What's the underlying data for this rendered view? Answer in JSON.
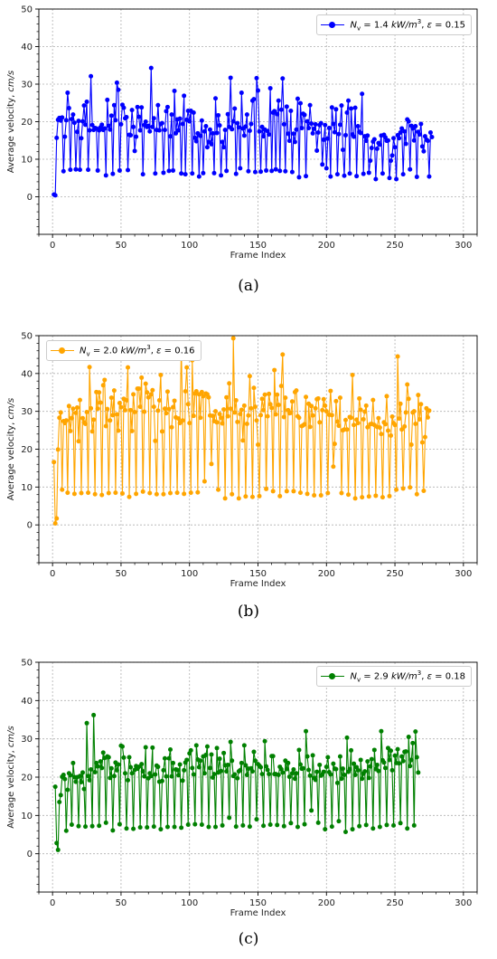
{
  "chart_data": [
    {
      "type": "line",
      "caption": "(a)",
      "color": "#0000ff",
      "legend": {
        "text": "N_v = 1.4 kW/m^3, ε = 0.15",
        "placement": "upper right"
      },
      "legend_parts": {
        "sym": "N",
        "sub": "v",
        "eq": " = 1.4 ",
        "unit": "kW/m",
        "sup": "3",
        "tail": ", ",
        "eps": "ε",
        "eps_val": " = 0.15"
      },
      "xlabel": "Frame Index",
      "ylabel": "Average velocity, cm/s",
      "xlim": [
        -10,
        310
      ],
      "ylim": [
        -10,
        50
      ],
      "xticks": [
        0,
        50,
        100,
        150,
        200,
        250,
        300
      ],
      "yticks": [
        0,
        10,
        20,
        30,
        40,
        50
      ],
      "grid": true,
      "x_start": 1,
      "values": [
        0.6,
        0.4,
        15.7,
        20.5,
        21.0,
        20.3,
        21.1,
        6.8,
        16.0,
        20.4,
        27.7,
        23.6,
        7.2,
        20.7,
        21.9,
        19.7,
        7.3,
        17.3,
        20.2,
        7.2,
        15.6,
        20.1,
        24.3,
        19.2,
        25.3,
        7.2,
        17.7,
        32.1,
        19.1,
        17.8,
        18.3,
        18.2,
        7.0,
        17.7,
        18.5,
        19.2,
        17.8,
        18.2,
        5.7,
        25.8,
        18.9,
        17.9,
        21.6,
        6.1,
        24.4,
        20.4,
        30.4,
        28.5,
        7.0,
        19.3,
        24.5,
        23.7,
        20.9,
        21.2,
        7.1,
        16.5,
        16.4,
        23.1,
        18.6,
        12.2,
        16.0,
        23.9,
        21.3,
        17.7,
        23.8,
        6.0,
        19.1,
        20.0,
        18.6,
        18.9,
        17.4,
        34.3,
        18.6,
        20.9,
        6.2,
        17.8,
        24.4,
        17.7,
        19.4,
        19.6,
        6.4,
        17.8,
        22.8,
        23.9,
        6.9,
        16.1,
        21.9,
        7.0,
        28.2,
        16.9,
        20.6,
        17.7,
        20.8,
        6.2,
        19.4,
        26.9,
        6.0,
        20.5,
        22.9,
        20.1,
        22.9,
        6.2,
        22.4,
        15.7,
        14.8,
        16.9,
        5.4,
        16.2,
        20.3,
        6.3,
        17.4,
        18.8,
        13.2,
        14.6,
        17.9,
        14.0,
        16.9,
        6.3,
        26.2,
        17.0,
        21.7,
        19.0,
        5.7,
        14.6,
        13.2,
        17.8,
        6.9,
        22.0,
        18.6,
        31.7,
        18.0,
        20.1,
        23.5,
        6.1,
        19.6,
        18.5,
        7.6,
        27.7,
        18.2,
        16.3,
        18.7,
        21.9,
        6.8,
        17.6,
        19.4,
        25.6,
        26.0,
        6.6,
        31.6,
        28.3,
        17.4,
        6.7,
        18.6,
        16.1,
        17.9,
        7.0,
        17.5,
        16.6,
        28.9,
        6.9,
        22.4,
        22.8,
        7.3,
        22.0,
        25.6,
        6.9,
        23.2,
        31.5,
        19.3,
        6.8,
        24.0,
        16.8,
        14.9,
        22.9,
        6.6,
        16.8,
        14.6,
        17.9,
        26.1,
        5.2,
        24.9,
        18.3,
        22.1,
        21.8,
        5.5,
        20.1,
        18.3,
        24.4,
        19.5,
        16.9,
        18.1,
        19.3,
        12.3,
        17.1,
        19.1,
        19.6,
        8.6,
        15.2,
        19.1,
        7.6,
        15.5,
        18.3,
        5.4,
        23.8,
        19.4,
        17.2,
        23.3,
        6.0,
        16.7,
        19.2,
        24.3,
        12.5,
        5.6,
        16.4,
        22.4,
        25.6,
        6.2,
        23.5,
        16.6,
        16.0,
        23.7,
        5.5,
        18.8,
        17.3,
        17.0,
        27.4,
        6.1,
        16.1,
        14.9,
        16.3,
        6.4,
        9.6,
        13.0,
        14.7,
        15.3,
        4.7,
        12.8,
        14.3,
        13.9,
        16.3,
        6.2,
        16.5,
        15.8,
        14.9,
        15.0,
        5.0,
        9.6,
        11.0,
        15.6,
        13.2,
        4.7,
        16.4,
        15.6,
        17.1,
        18.2,
        6.0,
        17.4,
        14.1,
        20.6,
        20.1,
        7.3,
        18.9,
        18.2,
        15.0,
        18.8,
        5.3,
        17.3,
        16.6,
        19.4,
        13.4,
        12.1,
        16.1,
        15.2,
        14.9,
        5.4,
        17.1,
        15.9
      ]
    },
    {
      "type": "line",
      "caption": "(b)",
      "color": "#ffa500",
      "legend": {
        "text": "N_v = 2.0 kW/m^3, ε = 0.16",
        "placement": "upper left"
      },
      "legend_parts": {
        "sym": "N",
        "sub": "v",
        "eq": " = 2.0 ",
        "unit": "kW/m",
        "sup": "3",
        "tail": ", ",
        "eps": "ε",
        "eps_val": " = 0.16"
      },
      "xlabel": "Frame Index",
      "ylabel": "Average velocity, cm/s",
      "xlim": [
        -10,
        310
      ],
      "ylim": [
        -10,
        50
      ],
      "xticks": [
        0,
        50,
        100,
        150,
        200,
        250,
        300
      ],
      "yticks": [
        0,
        10,
        20,
        30,
        40,
        50
      ],
      "grid": true,
      "x_start": 1,
      "values": [
        16.6,
        0.4,
        1.7,
        19.9,
        28.3,
        29.7,
        9.3,
        27.4,
        26.9,
        27.6,
        8.5,
        31.4,
        24.8,
        28.2,
        30.7,
        8.2,
        29.6,
        31.0,
        22.1,
        33.0,
        8.4,
        28.2,
        27.1,
        26.7,
        29.8,
        8.5,
        41.7,
        30.8,
        24.7,
        27.8,
        8.1,
        35.1,
        30.7,
        35.0,
        32.3,
        7.9,
        36.9,
        38.3,
        26.1,
        30.6,
        8.4,
        27.6,
        33.6,
        29.0,
        35.5,
        8.5,
        29.2,
        24.9,
        32.2,
        31.1,
        8.3,
        33.3,
        30.3,
        32.9,
        41.6,
        7.4,
        30.3,
        24.8,
        34.5,
        29.8,
        8.2,
        36.0,
        36.0,
        31.2,
        38.9,
        8.8,
        29.9,
        37.3,
        35.0,
        33.7,
        8.4,
        34.5,
        35.6,
        31.2,
        22.2,
        8.1,
        30.2,
        32.9,
        39.6,
        24.7,
        8.1,
        30.7,
        29.5,
        35.2,
        30.6,
        8.4,
        25.8,
        31.1,
        32.8,
        28.4,
        8.5,
        28.1,
        26.9,
        46.6,
        27.6,
        8.2,
        35.3,
        41.6,
        31.9,
        26.9,
        8.5,
        43.5,
        28.8,
        34.7,
        35.3,
        8.6,
        34.5,
        28.3,
        35.1,
        34.0,
        11.5,
        34.7,
        34.5,
        33.7,
        28.9,
        16.1,
        28.8,
        27.4,
        30.0,
        27.1,
        9.3,
        29.3,
        28.3,
        26.8,
        30.5,
        7.0,
        33.7,
        28.7,
        37.4,
        30.7,
        8.1,
        49.3,
        29.7,
        32.9,
        27.2,
        7.0,
        29.3,
        30.4,
        22.3,
        31.5,
        7.5,
        26.7,
        28.9,
        39.3,
        30.8,
        7.4,
        36.2,
        31.2,
        27.6,
        21.2,
        7.6,
        29.0,
        33.3,
        30.3,
        34.4,
        9.5,
        28.7,
        34.6,
        31.9,
        30.9,
        8.9,
        40.9,
        29.2,
        34.4,
        31.7,
        7.6,
        36.7,
        45.0,
        28.5,
        33.6,
        8.9,
        30.3,
        29.5,
        29.6,
        32.6,
        8.9,
        35.1,
        35.5,
        28.7,
        28.3,
        8.5,
        26.1,
        26.3,
        26.6,
        33.8,
        8.2,
        32.0,
        25.9,
        31.4,
        28.9,
        7.8,
        30.8,
        33.2,
        33.4,
        27.1,
        7.8,
        30.3,
        33.2,
        31.5,
        30.0,
        8.4,
        29.1,
        35.4,
        29.0,
        15.4,
        21.4,
        32.7,
        27.3,
        26.2,
        33.6,
        8.4,
        25.0,
        25.2,
        27.7,
        25.2,
        8.0,
        28.5,
        28.3,
        39.6,
        26.4,
        7.0,
        27.8,
        26.9,
        33.4,
        30.4,
        7.3,
        27.9,
        29.9,
        31.5,
        25.8,
        7.5,
        26.6,
        26.7,
        33.0,
        26.4,
        7.7,
        25.9,
        28.2,
        25.7,
        24.0,
        7.3,
        27.1,
        26.6,
        34.0,
        24.9,
        7.6,
        23.6,
        28.6,
        26.9,
        26.4,
        9.3,
        44.5,
        28.1,
        32.0,
        25.2,
        9.6,
        26.0,
        29.7,
        37.1,
        33.3,
        9.9,
        21.2,
        29.7,
        30.0,
        26.7,
        8.1,
        34.3,
        27.9,
        31.9,
        21.8,
        9.0,
        23.2,
        30.8,
        28.4,
        30.2
      ]
    },
    {
      "type": "line",
      "caption": "(c)",
      "color": "#008000",
      "legend": {
        "text": "N_v = 2.9 kW/m^3, ε = 0.18",
        "placement": "upper right"
      },
      "legend_parts": {
        "sym": "N",
        "sub": "v",
        "eq": " = 2.9 ",
        "unit": "kW/m",
        "sup": "3",
        "tail": ", ",
        "eps": "ε",
        "eps_val": " = 0.18"
      },
      "xlabel": "Frame Index",
      "ylabel": "Average velocity, cm/s",
      "xlim": [
        -10,
        310
      ],
      "ylim": [
        -10,
        50
      ],
      "xticks": [
        0,
        50,
        100,
        150,
        200,
        250,
        300
      ],
      "yticks": [
        0,
        10,
        20,
        30,
        40,
        50
      ],
      "grid": true,
      "x_start": 2,
      "values": [
        17.5,
        2.8,
        1.0,
        13.5,
        15.3,
        20.1,
        20.6,
        19.5,
        6.0,
        16.7,
        21.0,
        20.5,
        7.6,
        23.7,
        20.0,
        18.8,
        20.0,
        7.2,
        20.3,
        18.7,
        21.2,
        16.9,
        7.1,
        34.1,
        20.3,
        19.2,
        22.0,
        7.2,
        36.2,
        21.3,
        23.7,
        22.8,
        7.3,
        24.1,
        22.4,
        26.4,
        25.0,
        8.1,
        25.4,
        25.2,
        19.8,
        22.3,
        6.1,
        20.3,
        23.8,
        21.8,
        23.3,
        7.7,
        28.2,
        28.0,
        25.1,
        21.0,
        6.6,
        19.2,
        25.2,
        22.6,
        21.0,
        6.5,
        21.9,
        22.9,
        22.2,
        22.7,
        6.9,
        23.4,
        21.5,
        20.2,
        27.8,
        6.9,
        19.7,
        21.0,
        20.3,
        27.7,
        7.1,
        20.7,
        23.0,
        22.7,
        18.8,
        6.4,
        19.0,
        21.8,
        24.9,
        20.2,
        7.0,
        24.9,
        27.2,
        20.2,
        23.7,
        7.0,
        22.0,
        21.9,
        20.5,
        23.3,
        6.8,
        19.1,
        21.8,
        23.8,
        24.5,
        7.6,
        26.2,
        27.0,
        22.4,
        20.7,
        7.7,
        28.3,
        24.6,
        22.6,
        24.3,
        7.6,
        25.4,
        21.0,
        25.8,
        28.0,
        7.0,
        22.4,
        25.9,
        19.9,
        20.8,
        7.0,
        27.6,
        21.2,
        24.8,
        21.6,
        7.4,
        26.3,
        23.1,
        21.5,
        23.2,
        9.4,
        29.2,
        24.3,
        20.3,
        20.7,
        7.1,
        19.7,
        21.5,
        21.8,
        23.7,
        7.4,
        28.3,
        23.1,
        20.6,
        22.2,
        7.1,
        22.3,
        21.5,
        26.6,
        24.3,
        9.0,
        23.4,
        23.0,
        22.6,
        20.8,
        7.3,
        29.4,
        22.8,
        21.9,
        20.8,
        7.6,
        25.5,
        25.5,
        20.8,
        20.8,
        7.5,
        20.6,
        22.7,
        22.1,
        21.2,
        7.2,
        24.3,
        22.1,
        23.7,
        20.1,
        8.0,
        21.0,
        22.0,
        19.6,
        21.0,
        7.0,
        27.1,
        23.3,
        22.2,
        22.3,
        7.7,
        32.0,
        25.4,
        21.9,
        20.4,
        11.3,
        25.7,
        19.8,
        19.3,
        21.4,
        8.1,
        23.2,
        20.4,
        20.7,
        21.4,
        6.4,
        22.7,
        25.2,
        21.3,
        20.7,
        7.1,
        23.5,
        22.2,
        22.1,
        18.5,
        8.5,
        25.4,
        19.6,
        22.2,
        20.6,
        5.7,
        30.3,
        21.4,
        22.1,
        27.0,
        6.4,
        23.5,
        20.6,
        22.6,
        21.8,
        7.2,
        24.5,
        19.6,
        20.9,
        21.5,
        7.5,
        24.1,
        19.8,
        22.8,
        24.7,
        6.6,
        27.1,
        22.1,
        23.2,
        21.6,
        7.0,
        32.0,
        24.4,
        23.8,
        22.4,
        7.5,
        27.6,
        24.5,
        26.9,
        21.8,
        7.4,
        25.6,
        23.7,
        27.3,
        23.6,
        8.0,
        25.4,
        24.2,
        26.6,
        26.7,
        6.6,
        30.5,
        22.9,
        24.5,
        28.9,
        7.4,
        31.9,
        25.2,
        21.2
      ]
    }
  ]
}
